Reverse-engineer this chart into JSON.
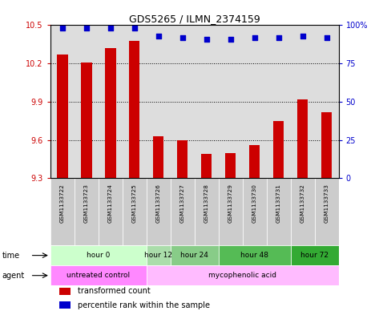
{
  "title": "GDS5265 / ILMN_2374159",
  "samples": [
    "GSM1133722",
    "GSM1133723",
    "GSM1133724",
    "GSM1133725",
    "GSM1133726",
    "GSM1133727",
    "GSM1133728",
    "GSM1133729",
    "GSM1133730",
    "GSM1133731",
    "GSM1133732",
    "GSM1133733"
  ],
  "bar_values": [
    10.27,
    10.21,
    10.32,
    10.38,
    9.63,
    9.6,
    9.49,
    9.5,
    9.56,
    9.75,
    9.92,
    9.82
  ],
  "percentile_values": [
    98,
    98,
    98,
    98,
    93,
    92,
    91,
    91,
    92,
    92,
    93,
    92
  ],
  "ylim_left": [
    9.3,
    10.5
  ],
  "ylim_right": [
    0,
    100
  ],
  "yticks_left": [
    9.3,
    9.6,
    9.9,
    10.2,
    10.5
  ],
  "yticks_right": [
    0,
    25,
    50,
    75,
    100
  ],
  "bar_color": "#cc0000",
  "dot_color": "#0000cc",
  "time_groups": [
    {
      "label": "hour 0",
      "start": 0,
      "end": 4,
      "color": "#ccffcc"
    },
    {
      "label": "hour 12",
      "start": 4,
      "end": 5,
      "color": "#aaddaa"
    },
    {
      "label": "hour 24",
      "start": 5,
      "end": 7,
      "color": "#88cc88"
    },
    {
      "label": "hour 48",
      "start": 7,
      "end": 10,
      "color": "#55bb55"
    },
    {
      "label": "hour 72",
      "start": 10,
      "end": 12,
      "color": "#33aa33"
    }
  ],
  "agent_groups": [
    {
      "label": "untreated control",
      "start": 0,
      "end": 4,
      "color": "#ff88ff"
    },
    {
      "label": "mycophenolic acid",
      "start": 4,
      "end": 12,
      "color": "#ffbbff"
    }
  ],
  "legend_items": [
    {
      "label": "transformed count",
      "color": "#cc0000"
    },
    {
      "label": "percentile rank within the sample",
      "color": "#0000cc"
    }
  ],
  "plot_bg": "#dddddd",
  "sample_bg": "#cccccc"
}
